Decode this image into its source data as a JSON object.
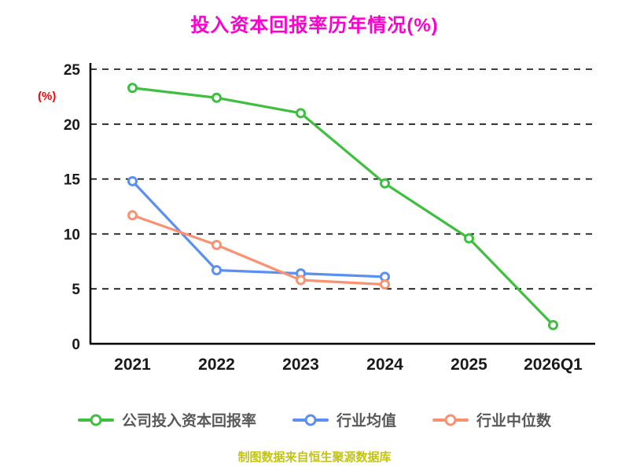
{
  "chart_data": {
    "type": "line",
    "title": "投入资本回报率历年情况(%)",
    "ylabel": "(%)",
    "footnote": "制图数据来自恒生聚源数据库",
    "categories": [
      "2021",
      "2022",
      "2023",
      "2024",
      "2025",
      "2026Q1"
    ],
    "series": [
      {
        "name": "公司投入资本回报率",
        "color": "#3FBF3F",
        "values": [
          23.3,
          22.4,
          21.0,
          14.6,
          9.6,
          1.7
        ]
      },
      {
        "name": "行业均值",
        "color": "#5B8FF2",
        "values": [
          14.8,
          6.7,
          6.4,
          6.1,
          null,
          null
        ]
      },
      {
        "name": "行业中位数",
        "color": "#FA9272",
        "values": [
          11.7,
          9.0,
          5.8,
          5.4,
          null,
          null
        ]
      }
    ],
    "ylim": [
      0,
      25
    ],
    "yticks": [
      0,
      5,
      10,
      15,
      20,
      25
    ],
    "grid": "dashed-horizontal",
    "legend_position": "bottom",
    "colors": {
      "title": "#FF00CC",
      "ylabel": "#FF0000",
      "axis": "#000000",
      "tick_labels": "#1a1a1a",
      "legend_text": "#595959",
      "footer": "#C3C316"
    }
  }
}
